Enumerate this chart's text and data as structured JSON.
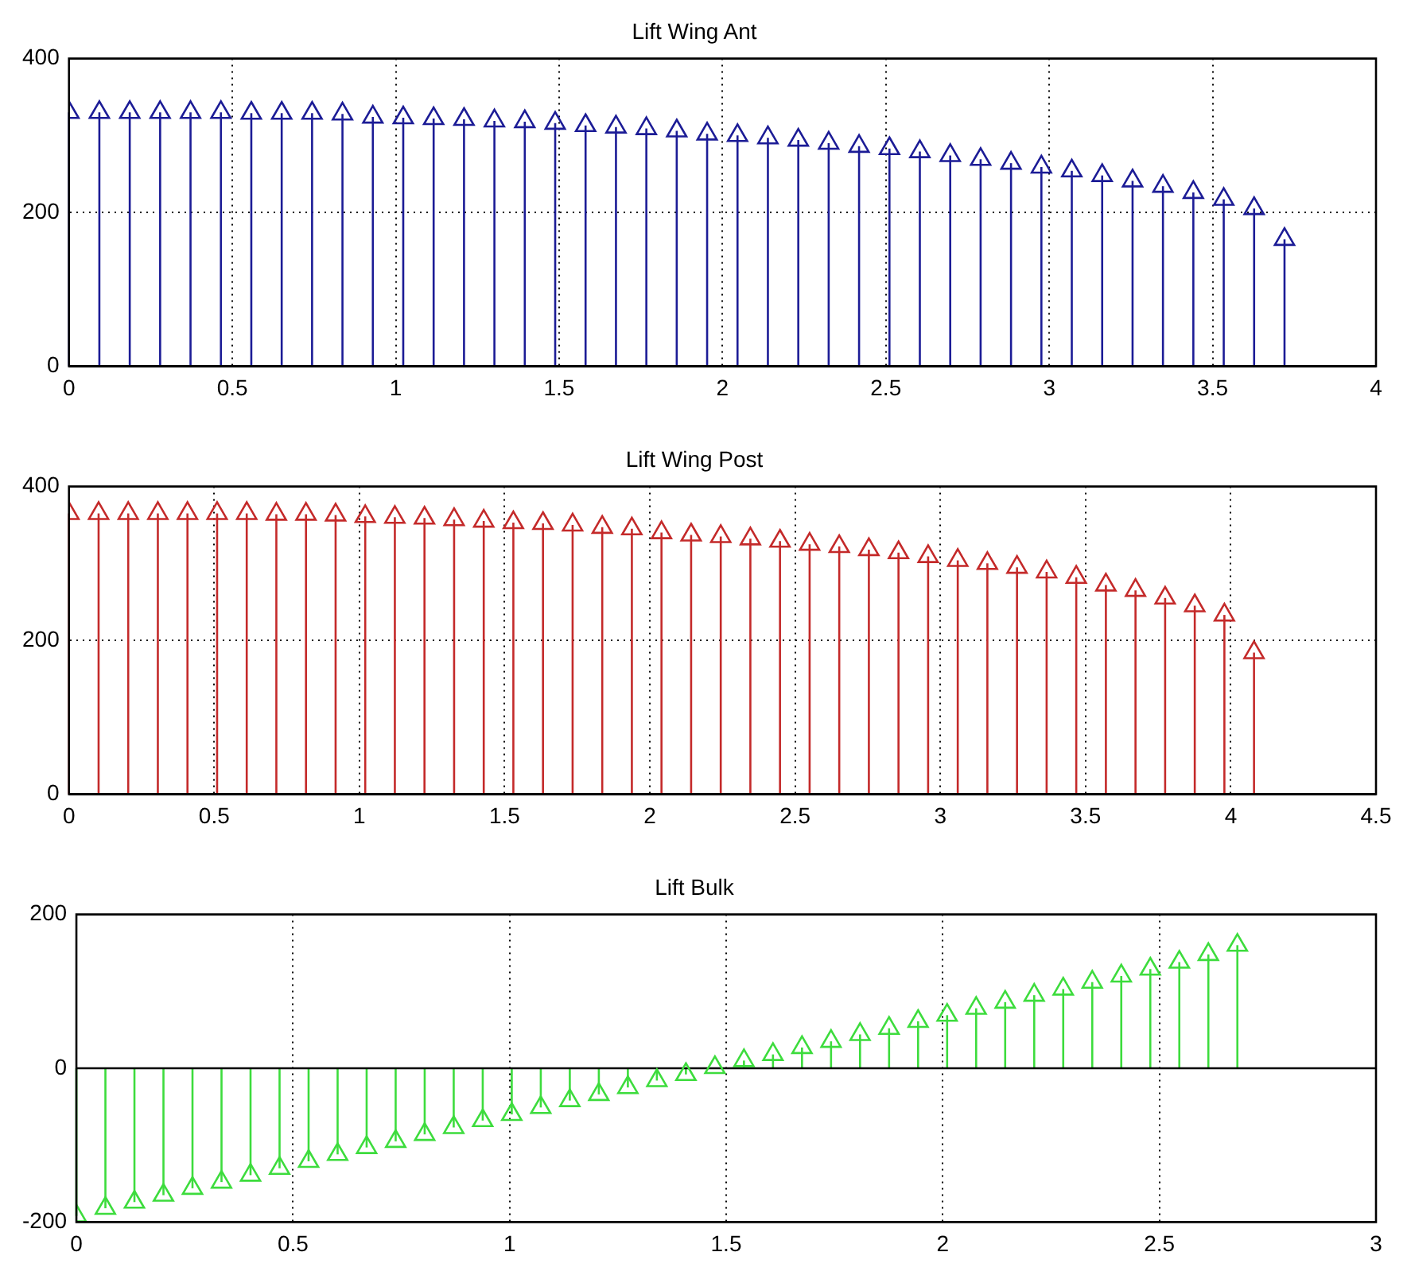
{
  "chart_data": [
    {
      "type": "lollipop",
      "title": "Lift Wing Ant",
      "color": "#1c1c96",
      "marker": "triangle",
      "grid": true,
      "xlim": [
        0,
        4
      ],
      "xticks": [
        0,
        0.5,
        1,
        1.5,
        2,
        2.5,
        3,
        3.5,
        4
      ],
      "ylim": [
        0,
        400
      ],
      "yticks": [
        0,
        200,
        400
      ],
      "x": [
        0,
        0.093,
        0.186,
        0.279,
        0.372,
        0.465,
        0.558,
        0.651,
        0.744,
        0.837,
        0.93,
        1.023,
        1.116,
        1.209,
        1.302,
        1.395,
        1.488,
        1.581,
        1.674,
        1.767,
        1.86,
        1.953,
        2.046,
        2.139,
        2.232,
        2.325,
        2.418,
        2.511,
        2.604,
        2.697,
        2.79,
        2.883,
        2.976,
        3.069,
        3.162,
        3.255,
        3.348,
        3.441,
        3.534,
        3.627,
        3.72
      ],
      "values": [
        330,
        330,
        330,
        330,
        330,
        330,
        329,
        329,
        329,
        328,
        324,
        323,
        322,
        321,
        319,
        318,
        316,
        313,
        311,
        309,
        306,
        302,
        300,
        297,
        294,
        290,
        286,
        283,
        279,
        274,
        269,
        264,
        259,
        254,
        248,
        241,
        234,
        226,
        217,
        205,
        165
      ]
    },
    {
      "type": "lollipop",
      "title": "Lift Wing Post",
      "color": "#c42a2a",
      "marker": "triangle",
      "grid": true,
      "xlim": [
        0,
        4.5
      ],
      "xticks": [
        0,
        0.5,
        1,
        1.5,
        2,
        2.5,
        3,
        3.5,
        4,
        4.5
      ],
      "ylim": [
        0,
        400
      ],
      "yticks": [
        0,
        200,
        400
      ],
      "x": [
        0,
        0.102,
        0.204,
        0.306,
        0.408,
        0.51,
        0.612,
        0.714,
        0.816,
        0.918,
        1.02,
        1.122,
        1.224,
        1.326,
        1.428,
        1.53,
        1.632,
        1.734,
        1.836,
        1.938,
        2.04,
        2.142,
        2.244,
        2.346,
        2.448,
        2.55,
        2.652,
        2.754,
        2.856,
        2.958,
        3.06,
        3.162,
        3.264,
        3.366,
        3.468,
        3.57,
        3.672,
        3.774,
        3.876,
        3.978,
        4.08
      ],
      "values": [
        365,
        365,
        365,
        365,
        365,
        365,
        365,
        364,
        364,
        363,
        361,
        360,
        359,
        357,
        355,
        353,
        352,
        350,
        347,
        345,
        340,
        337,
        335,
        332,
        329,
        325,
        322,
        318,
        314,
        309,
        304,
        300,
        295,
        289,
        282,
        272,
        265,
        255,
        245,
        233,
        184
      ]
    },
    {
      "type": "lollipop",
      "title": "Lift Bulk",
      "color": "#3ddc3d",
      "marker": "triangle",
      "grid": true,
      "xlim": [
        0,
        3
      ],
      "xticks": [
        0,
        0.5,
        1,
        1.5,
        2,
        2.5,
        3
      ],
      "ylim": [
        -200,
        200
      ],
      "yticks": [
        -200,
        0,
        200
      ],
      "x": [
        0,
        0.067,
        0.134,
        0.201,
        0.268,
        0.335,
        0.402,
        0.469,
        0.536,
        0.603,
        0.67,
        0.737,
        0.804,
        0.871,
        0.938,
        1.005,
        1.072,
        1.139,
        1.206,
        1.273,
        1.34,
        1.407,
        1.474,
        1.541,
        1.608,
        1.675,
        1.742,
        1.809,
        1.876,
        1.943,
        2.01,
        2.077,
        2.144,
        2.211,
        2.278,
        2.345,
        2.412,
        2.479,
        2.546,
        2.613,
        2.68
      ],
      "values": [
        -192,
        -182,
        -174,
        -165,
        -156,
        -148,
        -139,
        -130,
        -121,
        -112,
        -103,
        -95,
        -86,
        -77,
        -68,
        -60,
        -51,
        -42,
        -34,
        -25,
        -16,
        -8,
        1,
        10,
        18,
        27,
        35,
        44,
        52,
        61,
        69,
        78,
        86,
        95,
        103,
        112,
        120,
        129,
        138,
        148,
        160
      ]
    }
  ]
}
